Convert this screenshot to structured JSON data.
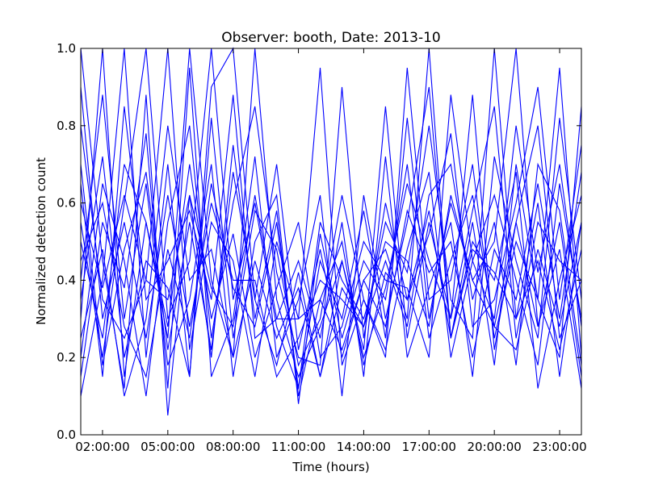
{
  "chart_data": {
    "type": "line",
    "title": "Observer: booth, Date: 2013-10",
    "xlabel": "Time (hours)",
    "ylabel": "Normalized detection count",
    "xlim": [
      1,
      24
    ],
    "ylim": [
      0,
      1
    ],
    "x_ticks": [
      {
        "value": 2,
        "label": "02:00:00"
      },
      {
        "value": 5,
        "label": "05:00:00"
      },
      {
        "value": 8,
        "label": "08:00:00"
      },
      {
        "value": 11,
        "label": "11:00:00"
      },
      {
        "value": 14,
        "label": "14:00:00"
      },
      {
        "value": 17,
        "label": "17:00:00"
      },
      {
        "value": 20,
        "label": "20:00:00"
      },
      {
        "value": 23,
        "label": "23:00:00"
      }
    ],
    "y_ticks": [
      {
        "value": 0.0,
        "label": "0.0"
      },
      {
        "value": 0.2,
        "label": "0.2"
      },
      {
        "value": 0.4,
        "label": "0.4"
      },
      {
        "value": 0.6,
        "label": "0.6"
      },
      {
        "value": 0.8,
        "label": "0.8"
      },
      {
        "value": 1.0,
        "label": "1.0"
      }
    ],
    "grid": false,
    "legend": "none",
    "line_color": "#0000ff",
    "x": [
      1,
      2,
      3,
      4,
      5,
      6,
      7,
      8,
      9,
      10,
      11,
      12,
      13,
      14,
      15,
      16,
      17,
      18,
      19,
      20,
      21,
      22,
      23,
      24
    ],
    "series": [
      {
        "values": [
          1.0,
          0.45,
          0.12,
          0.88,
          0.05,
          0.62,
          0.2,
          0.75,
          0.3,
          0.58,
          0.1,
          0.35,
          0.22,
          0.4,
          0.48,
          0.3,
          1.0,
          0.25,
          0.55,
          0.18,
          0.7,
          0.35,
          0.95,
          0.2
        ]
      },
      {
        "values": [
          0.3,
          1.0,
          0.15,
          0.55,
          0.25,
          1.0,
          0.4,
          0.2,
          1.0,
          0.35,
          0.15,
          0.28,
          0.45,
          0.2,
          0.38,
          0.65,
          0.45,
          0.3,
          0.88,
          0.22,
          0.55,
          0.8,
          0.25,
          0.4
        ]
      },
      {
        "values": [
          0.1,
          0.4,
          1.0,
          0.2,
          0.7,
          0.15,
          0.9,
          1.0,
          0.35,
          0.18,
          0.42,
          0.15,
          0.38,
          0.28,
          0.55,
          0.42,
          0.8,
          0.35,
          0.25,
          1.0,
          0.3,
          0.6,
          0.15,
          0.55
        ]
      },
      {
        "values": [
          0.55,
          0.2,
          0.6,
          1.0,
          0.3,
          0.45,
          1.0,
          0.35,
          0.6,
          0.28,
          0.12,
          0.45,
          0.3,
          0.58,
          0.25,
          0.82,
          0.3,
          0.6,
          0.4,
          0.5,
          1.0,
          0.28,
          0.48,
          0.12
        ]
      },
      {
        "values": [
          0.8,
          0.35,
          0.25,
          0.4,
          1.0,
          0.22,
          0.55,
          0.45,
          0.15,
          0.5,
          0.3,
          0.95,
          0.18,
          0.35,
          0.22,
          0.48,
          0.68,
          0.2,
          0.45,
          0.62,
          0.4,
          0.18,
          0.65,
          0.3
        ]
      },
      {
        "values": [
          0.2,
          0.65,
          0.45,
          0.1,
          0.55,
          0.8,
          0.25,
          0.6,
          0.85,
          0.42,
          0.2,
          0.18,
          0.9,
          0.25,
          0.6,
          0.35,
          0.52,
          0.78,
          0.28,
          0.35,
          0.6,
          0.9,
          0.35,
          0.75
        ]
      },
      {
        "values": [
          0.4,
          0.88,
          0.3,
          0.65,
          0.18,
          0.35,
          0.7,
          0.15,
          0.5,
          0.62,
          0.08,
          0.52,
          0.25,
          0.45,
          0.35,
          0.7,
          0.25,
          0.45,
          0.62,
          0.28,
          0.22,
          0.48,
          0.28,
          0.55
        ]
      },
      {
        "values": [
          0.65,
          0.15,
          0.85,
          0.35,
          0.45,
          0.58,
          0.35,
          0.88,
          0.25,
          0.3,
          0.45,
          0.25,
          0.55,
          0.15,
          0.72,
          0.2,
          0.38,
          0.55,
          0.15,
          0.72,
          0.45,
          0.25,
          0.82,
          0.35
        ]
      },
      {
        "values": [
          0.15,
          0.55,
          0.38,
          0.78,
          0.12,
          0.95,
          0.15,
          0.3,
          0.72,
          0.2,
          0.35,
          0.62,
          0.1,
          0.62,
          0.3,
          0.55,
          0.9,
          0.25,
          0.5,
          0.4,
          0.68,
          0.12,
          0.4,
          0.62
        ]
      },
      {
        "values": [
          0.9,
          0.3,
          0.55,
          0.25,
          0.62,
          0.28,
          0.6,
          0.4,
          0.4,
          0.15,
          0.25,
          0.4,
          0.35,
          0.28,
          0.45,
          0.28,
          0.62,
          0.7,
          0.35,
          0.55,
          0.18,
          0.7,
          0.58,
          0.18
        ]
      },
      {
        "values": [
          0.35,
          0.72,
          0.2,
          0.45,
          0.38,
          0.15,
          0.82,
          0.25,
          0.58,
          0.48,
          0.18,
          0.3,
          0.62,
          0.35,
          0.2,
          0.95,
          0.35,
          0.4,
          0.7,
          0.25,
          0.5,
          0.35,
          0.2,
          0.85
        ]
      },
      {
        "values": [
          0.5,
          0.25,
          0.7,
          0.55,
          0.28,
          0.7,
          0.3,
          0.52,
          0.2,
          0.38,
          0.55,
          0.2,
          0.28,
          0.5,
          0.4,
          0.38,
          0.2,
          0.88,
          0.45,
          0.3,
          0.8,
          0.42,
          0.7,
          0.28
        ]
      },
      {
        "values": [
          0.25,
          0.48,
          0.1,
          0.3,
          0.8,
          0.4,
          0.48,
          0.2,
          0.45,
          0.25,
          0.38,
          0.15,
          0.45,
          0.22,
          0.85,
          0.25,
          0.55,
          0.3,
          0.58,
          0.85,
          0.25,
          0.55,
          0.45,
          0.4
        ]
      },
      {
        "values": [
          0.7,
          0.18,
          0.48,
          0.68,
          0.22,
          0.55,
          0.22,
          0.68,
          0.35,
          0.7,
          0.22,
          0.48,
          0.2,
          0.4,
          0.28,
          0.58,
          0.42,
          0.5,
          0.2,
          0.48,
          0.35,
          0.65,
          0.3,
          0.68
        ]
      },
      {
        "values": [
          0.45,
          0.6,
          0.28,
          0.15,
          0.48,
          0.25,
          0.65,
          0.38,
          0.28,
          0.55,
          0.12,
          0.55,
          0.4,
          0.3,
          0.5,
          0.45,
          0.28,
          0.62,
          0.4,
          0.28,
          0.55,
          0.28,
          0.55,
          0.15
        ]
      },
      {
        "values": [
          0.6,
          0.38,
          0.62,
          0.4,
          0.35,
          0.62,
          0.38,
          0.28,
          0.62,
          0.3,
          0.3,
          0.35,
          0.5,
          0.18,
          0.42,
          0.35,
          0.58,
          0.25,
          0.48,
          0.42,
          0.3,
          0.45,
          0.22,
          0.48
        ]
      }
    ]
  }
}
